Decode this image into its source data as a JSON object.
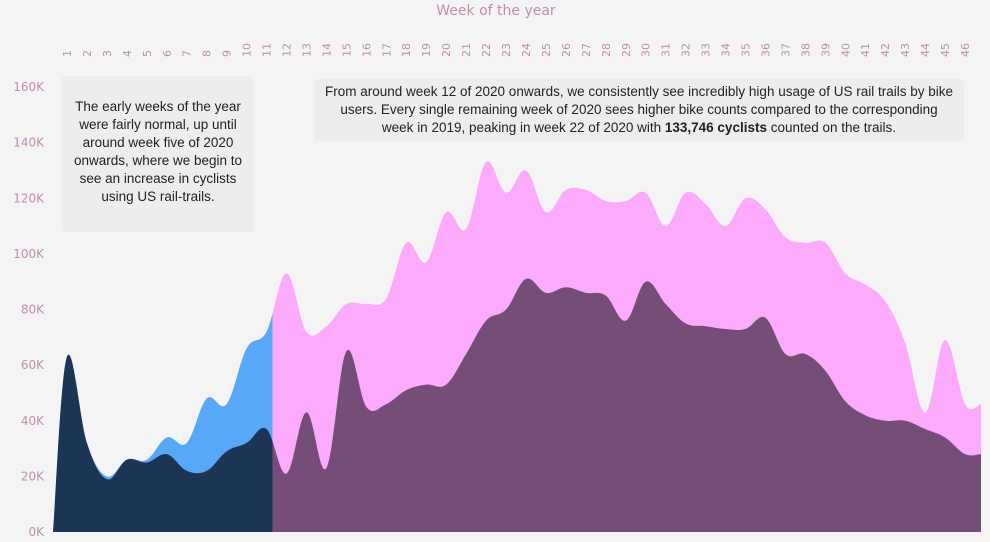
{
  "chart_data": {
    "type": "area",
    "title": "",
    "xlabel": "Week of the year",
    "ylabel": "",
    "x": [
      1,
      2,
      3,
      4,
      5,
      6,
      7,
      8,
      9,
      10,
      11,
      12,
      13,
      14,
      15,
      16,
      17,
      18,
      19,
      20,
      21,
      22,
      23,
      24,
      25,
      26,
      27,
      28,
      29,
      30,
      31,
      32,
      33,
      34,
      35,
      36,
      37,
      38,
      39,
      40,
      41,
      42,
      43,
      44,
      45,
      46
    ],
    "xlim": [
      0.3,
      46.8
    ],
    "ylim": [
      0,
      160000
    ],
    "yticks": [
      0,
      20000,
      40000,
      60000,
      80000,
      100000,
      120000,
      140000,
      160000
    ],
    "ytick_labels": [
      "0K",
      "20K",
      "40K",
      "60K",
      "80K",
      "100K",
      "120K",
      "140K",
      "160K"
    ],
    "highlight_until_week": 11.3,
    "grid": false,
    "legend": "none",
    "series": [
      {
        "values": [
          63000,
          32000,
          20000,
          26000,
          26000,
          34000,
          32000,
          48000,
          46000,
          66000,
          72000,
          93000,
          72000,
          74000,
          82000,
          82000,
          84000,
          104000,
          97000,
          115000,
          109000,
          133000,
          122000,
          130000,
          115000,
          123000,
          123000,
          119000,
          119000,
          122000,
          110000,
          122000,
          118000,
          110000,
          120000,
          116000,
          106000,
          104000,
          104000,
          93000,
          89000,
          83000,
          68000,
          43000,
          69000,
          46000
        ]
      },
      {
        "values": [
          63000,
          32000,
          19000,
          26000,
          25000,
          28000,
          22000,
          22000,
          29000,
          32000,
          37000,
          21000,
          43000,
          23000,
          65000,
          45000,
          46000,
          51000,
          53000,
          53000,
          64000,
          76000,
          80000,
          91000,
          86000,
          88000,
          86000,
          85000,
          76000,
          90000,
          82000,
          75000,
          74000,
          73000,
          73000,
          77000,
          64000,
          64000,
          58000,
          47000,
          42000,
          40000,
          40000,
          37000,
          34000,
          28000
        ]
      }
    ],
    "colors": {
      "2020_early": "#57a8f8",
      "2019_early": "#1c3554",
      "2020_late": "#fcaafc",
      "2019_late": "#744e76"
    }
  },
  "annotations": {
    "left": "The early weeks of the year were fairly normal, up until around week five of 2020 onwards, where we begin to see an increase in cyclists using US rail-trails.",
    "right_before": "From around week 12 of 2020 onwards, we consistently see incredibly high usage of US rail trails by bike users. Every single remaining week of 2020 sees higher bike counts compared to the corresponding week in 2019, peaking in week 22 of 2020 with ",
    "right_bold": "133,746 cyclists",
    "right_after": " counted on the trails."
  }
}
